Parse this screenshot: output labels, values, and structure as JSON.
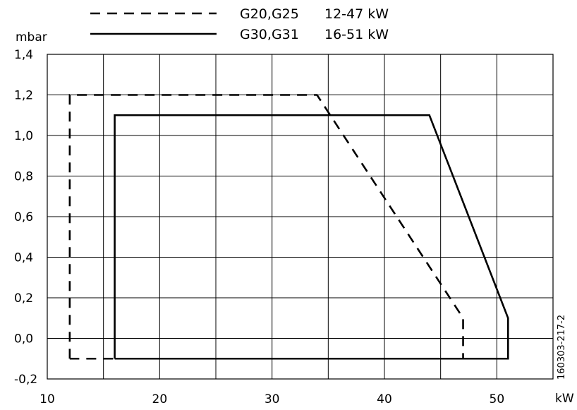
{
  "chart_data": {
    "type": "line",
    "title": "",
    "xlabel": "kW",
    "ylabel": "mbar",
    "xlim": [
      10,
      55
    ],
    "ylim": [
      -0.2,
      1.4
    ],
    "x_ticks": [
      10,
      20,
      30,
      40,
      50
    ],
    "x_tick_labels": [
      "10",
      "20",
      "30",
      "40",
      "50"
    ],
    "y_ticks": [
      -0.2,
      0.0,
      0.2,
      0.4,
      0.6,
      0.8,
      1.0,
      1.2,
      1.4
    ],
    "y_tick_labels": [
      "-0,2",
      "0,0",
      "0,2",
      "0,4",
      "0,6",
      "0,8",
      "1,0",
      "1,2",
      "1,4"
    ],
    "grid": true,
    "legend_position": "top",
    "series": [
      {
        "name": "G20,G25",
        "range_label": "12-47 kW",
        "line_style": "dashed",
        "color": "#000000",
        "points": [
          {
            "x": 12,
            "y": -0.1
          },
          {
            "x": 12,
            "y": 1.2
          },
          {
            "x": 34,
            "y": 1.2
          },
          {
            "x": 47,
            "y": 0.1
          },
          {
            "x": 47,
            "y": -0.1
          },
          {
            "x": 12,
            "y": -0.1
          }
        ]
      },
      {
        "name": "G30,G31",
        "range_label": "16-51 kW",
        "line_style": "solid",
        "color": "#000000",
        "points": [
          {
            "x": 16,
            "y": -0.1
          },
          {
            "x": 16,
            "y": 1.1
          },
          {
            "x": 44,
            "y": 1.1
          },
          {
            "x": 51,
            "y": 0.1
          },
          {
            "x": 51,
            "y": -0.1
          },
          {
            "x": 16,
            "y": -0.1
          }
        ]
      }
    ],
    "side_label": "160303-217-2"
  }
}
